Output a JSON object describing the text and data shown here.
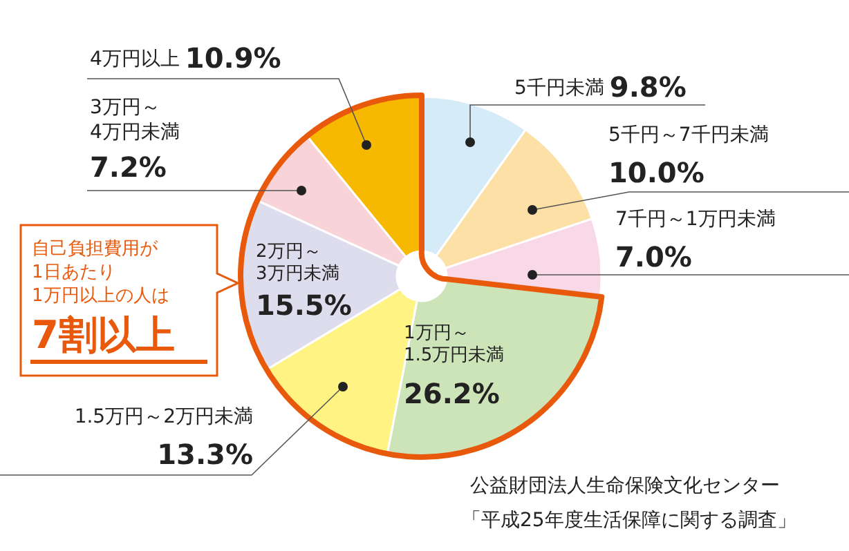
{
  "chart_data": {
    "type": "donut",
    "categories": [
      "5千円未満",
      "5千円～7千円未満",
      "7千円～1万円未満",
      "1万円～\n1.5万円未満",
      "1.5万円～2万円未満",
      "2万円～\n3万円未満",
      "3万円～\n4万円未満",
      "4万円以上"
    ],
    "values": [
      9.8,
      10.0,
      7.0,
      26.2,
      13.3,
      15.5,
      7.2,
      10.9
    ],
    "value_labels": [
      "9.8%",
      "10.0%",
      "7.0%",
      "26.2%",
      "13.3%",
      "15.5%",
      "7.2%",
      "10.9%"
    ],
    "colors": [
      "#d5ebf8",
      "#fde0a6",
      "#f9d8e7",
      "#cde4b9",
      "#fff383",
      "#deddee",
      "#f8d3d8",
      "#f7b800"
    ],
    "annotations": [
      "自己負担費用が\n1日あたり\n1万円以上の人は",
      "7割以上",
      "公益財団法人生命保険文化センター",
      "「平成25年度生活保障に関する調査」"
    ]
  }
}
